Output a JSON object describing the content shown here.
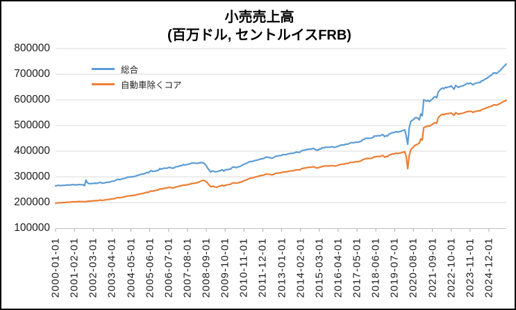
{
  "title": {
    "line1": "小売売上高",
    "line2": "(百万ドル, セントルイスFRB)"
  },
  "legend": [
    {
      "label": "総合",
      "color": "#5B9BD5"
    },
    {
      "label": "自動車除くコア",
      "color": "#ED7D31"
    }
  ],
  "colors": {
    "series_total": "#5B9BD5",
    "series_core": "#ED7D31",
    "gridline": "#D9D9D9",
    "axis_line": "#BFBFBF",
    "tick_mark": "#A6A6A6",
    "label_text": "#1a1a1a",
    "frame_border": "#000000"
  },
  "chart_data": {
    "type": "line",
    "title": "小売売上高 (百万ドル, セントルイスFRB)",
    "ylabel": "",
    "xlabel": "",
    "ylim": [
      100000,
      800000
    ],
    "y_tick_step": 100000,
    "y_tick_labels": [
      "100000",
      "200000",
      "300000",
      "400000",
      "500000",
      "600000",
      "700000",
      "800000"
    ],
    "grid": "horizontal",
    "legend_position": "top-left-inside",
    "x_frequency": "monthly",
    "x_start": "2000-01-01",
    "x_end": "2025-12-01",
    "x_tick_interval_months": 13,
    "x_tick_labels": [
      "2000-01-01",
      "2001-02-01",
      "2002-03-01",
      "2003-04-01",
      "2004-05-01",
      "2005-06-01",
      "2006-07-01",
      "2007-08-01",
      "2008-09-01",
      "2009-10-01",
      "2010-11-01",
      "2011-12-01",
      "2013-01-01",
      "2014-02-01",
      "2015-03-01",
      "2016-04-01",
      "2017-05-01",
      "2018-06-01",
      "2019-07-01",
      "2020-08-01",
      "2021-09-01",
      "2022-10-01",
      "2023-11-01",
      "2024-12-01"
    ],
    "series": [
      {
        "name": "総合",
        "color": "#5B9BD5",
        "values": [
          265000,
          266000,
          267000,
          266200,
          266000,
          267000,
          266800,
          267500,
          268300,
          267600,
          268400,
          269000,
          269600,
          269400,
          268600,
          269300,
          270000,
          269600,
          269200,
          269400,
          265500,
          287500,
          277000,
          273500,
          273200,
          274400,
          274000,
          275800,
          274400,
          275600,
          277400,
          278600,
          275400,
          275600,
          276600,
          278600,
          279200,
          278400,
          281200,
          282600,
          283000,
          285200,
          288400,
          290500,
          289300,
          290100,
          292300,
          293200,
          294800,
          296800,
          299600,
          298000,
          301200,
          299200,
          301600,
          301800,
          305000,
          306800,
          307600,
          310600,
          310200,
          312400,
          314000,
          317200,
          315400,
          320400,
          324600,
          321000,
          321800,
          322200,
          324800,
          325400,
          332600,
          330000,
          332000,
          334000,
          333400,
          333400,
          336400,
          336800,
          334400,
          333600,
          336000,
          339400,
          339800,
          341000,
          343800,
          343400,
          347800,
          345800,
          347000,
          348100,
          349900,
          350900,
          354400,
          353400,
          353900,
          352500,
          353100,
          354100,
          355500,
          355600,
          354200,
          350200,
          343500,
          333600,
          326600,
          318600,
          322500,
          322900,
          319100,
          319600,
          321100,
          323600,
          324700,
          328100,
          322200,
          326600,
          328600,
          328200,
          330000,
          331400,
          337400,
          339000,
          336500,
          336400,
          338500,
          340400,
          342000,
          345900,
          348900,
          351400,
          353500,
          356400,
          358900,
          360400,
          359900,
          362400,
          364400,
          364900,
          366900,
          368900,
          370400,
          370900,
          373000,
          376900,
          376400,
          375900,
          374900,
          372500,
          373500,
          376900,
          380900,
          380900,
          382400,
          382900,
          383400,
          386900,
          386400,
          386400,
          388400,
          389900,
          391400,
          391900,
          391900,
          394400,
          395900,
          396400,
          394900,
          397900,
          402400,
          403400,
          404400,
          406400,
          406400,
          408900,
          407400,
          409400,
          410900,
          407400,
          404400,
          403900,
          408400,
          408400,
          413400,
          412900,
          415400,
          415400,
          415400,
          415400,
          416900,
          417400,
          415400,
          415400,
          416900,
          419400,
          421400,
          424400,
          424400,
          423900,
          427400,
          427400,
          427900,
          431400,
          433400,
          432400,
          433400,
          435400,
          434400,
          435400,
          437400,
          438900,
          445400,
          446400,
          450400,
          450400,
          450400,
          450400,
          451400,
          453400,
          459400,
          458400,
          459900,
          460400,
          459400,
          463400,
          464400,
          456400,
          460400,
          458900,
          466400,
          468400,
          471400,
          472400,
          473900,
          476400,
          474400,
          475400,
          476900,
          479400,
          481400,
          483000,
          458000,
          427000,
          490000,
          515000,
          520000,
          523000,
          530000,
          531000,
          528000,
          522000,
          545000,
          538000,
          600000,
          598000,
          595000,
          598000,
          593000,
          599000,
          603000,
          610000,
          613000,
          608000,
          630000,
          637000,
          643000,
          646500,
          643500,
          649500,
          647500,
          650500,
          650500,
          654500,
          647500,
          641500,
          656500,
          652500,
          648500,
          651500,
          653500,
          654500,
          657500,
          660500,
          664500,
          662500,
          665500,
          663500,
          658500,
          662500,
          665500,
          665500,
          668500,
          667500,
          674500,
          675500,
          679500,
          682500,
          685500,
          690500,
          694000,
          697000,
          704000,
          706000,
          703000,
          706000,
          711000,
          716000,
          722000,
          728000,
          734000,
          740000
        ]
      },
      {
        "name": "自動車除くコア",
        "color": "#ED7D31",
        "values": [
          197000,
          197800,
          198800,
          198600,
          199200,
          199900,
          199800,
          200500,
          201300,
          201100,
          201700,
          202200,
          202600,
          203000,
          202800,
          203400,
          204100,
          203800,
          203500,
          203900,
          202200,
          203700,
          204700,
          205500,
          205100,
          205900,
          206400,
          207400,
          206900,
          207700,
          208700,
          209400,
          208500,
          208800,
          209600,
          210700,
          211300,
          211800,
          213300,
          214100,
          214500,
          215800,
          217500,
          219100,
          218600,
          219200,
          220500,
          221300,
          222800,
          224100,
          225900,
          225300,
          227300,
          226700,
          228100,
          228500,
          230700,
          232000,
          232800,
          234700,
          234900,
          236700,
          238000,
          240200,
          239500,
          242800,
          245400,
          243700,
          245800,
          246700,
          248400,
          249300,
          253900,
          252400,
          253900,
          255600,
          255900,
          256500,
          258600,
          259400,
          257100,
          256300,
          258100,
          260800,
          261600,
          262700,
          265100,
          265200,
          268300,
          267100,
          268400,
          269300,
          270700,
          272000,
          274600,
          274400,
          275800,
          276100,
          277700,
          279600,
          282600,
          285000,
          286100,
          284600,
          281800,
          275000,
          267800,
          261500,
          262500,
          263200,
          260300,
          259800,
          261300,
          263400,
          264900,
          267500,
          264300,
          266900,
          268500,
          269500,
          270500,
          271500,
          275500,
          277000,
          275500,
          275500,
          277000,
          278500,
          279500,
          282500,
          285000,
          287000,
          289000,
          291500,
          294000,
          295500,
          295500,
          298000,
          300000,
          300500,
          302500,
          304000,
          305500,
          306000,
          307500,
          310500,
          310500,
          310000,
          309500,
          308000,
          308500,
          311000,
          314000,
          314000,
          315500,
          316000,
          316500,
          319000,
          319000,
          319000,
          320500,
          322000,
          323000,
          323500,
          323500,
          325500,
          327000,
          327500,
          326500,
          329000,
          332500,
          333500,
          334000,
          336000,
          336000,
          338000,
          337000,
          338500,
          339500,
          337000,
          334500,
          334500,
          337500,
          337500,
          341000,
          341000,
          342500,
          342500,
          342500,
          342500,
          343500,
          344000,
          342500,
          342500,
          343500,
          345500,
          347000,
          349500,
          349500,
          349000,
          352000,
          352000,
          352500,
          355500,
          357000,
          356500,
          357500,
          359000,
          358500,
          359500,
          361000,
          362500,
          367500,
          368000,
          371500,
          371500,
          371500,
          371500,
          372500,
          374000,
          379000,
          378500,
          379500,
          380000,
          379000,
          382500,
          383000,
          376500,
          379500,
          378500,
          384500,
          386000,
          388500,
          389500,
          390500,
          392500,
          391000,
          392000,
          393000,
          395000,
          396500,
          398000,
          378000,
          332000,
          382000,
          405000,
          412000,
          416000,
          423000,
          425000,
          428000,
          432000,
          448000,
          444000,
          492000,
          494000,
          496000,
          499000,
          497000,
          502000,
          505000,
          509000,
          511000,
          509000,
          530000,
          536000,
          541000,
          544000,
          542000,
          546000,
          545000,
          547000,
          547000,
          549000,
          544000,
          540000,
          550000,
          547000,
          544000,
          546000,
          547000,
          548000,
          550000,
          552000,
          555000,
          554000,
          556000,
          555000,
          551000,
          554000,
          556000,
          556000,
          558000,
          557000,
          562000,
          563000,
          566000,
          568000,
          570000,
          573000,
          574000,
          576000,
          580000,
          581000,
          579000,
          581000,
          584000,
          587000,
          590000,
          593000,
          595500,
          598000
        ]
      }
    ]
  }
}
